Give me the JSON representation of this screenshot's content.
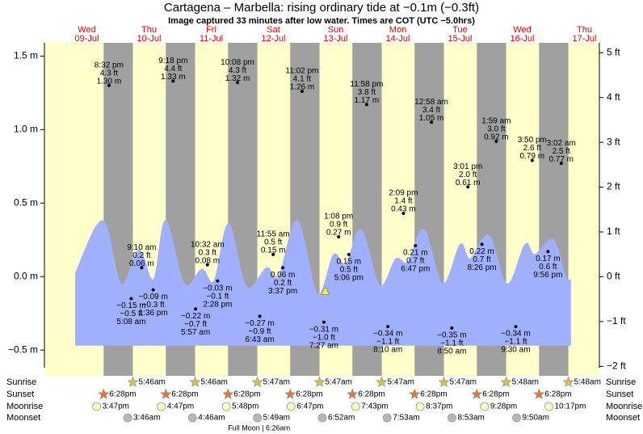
{
  "chart_data": {
    "type": "tide",
    "title": "Cartagena – Marbella: rising  ordinary tide at −0.1m (−0.3ft)",
    "subtitle": "Image captured 33 minutes after low water. Times are COT (UTC −5.0hrs)",
    "days": [
      {
        "weekday": "Wed",
        "date": "09-Jul"
      },
      {
        "weekday": "Thu",
        "date": "10-Jul"
      },
      {
        "weekday": "Fri",
        "date": "11-Jul"
      },
      {
        "weekday": "Sat",
        "date": "12-Jul"
      },
      {
        "weekday": "Sun",
        "date": "13-Jul"
      },
      {
        "weekday": "Mon",
        "date": "14-Jul"
      },
      {
        "weekday": "Tue",
        "date": "15-Jul"
      },
      {
        "weekday": "Wed",
        "date": "16-Jul"
      },
      {
        "weekday": "Thu",
        "date": "17-Jul"
      }
    ],
    "ylim": [
      -0.62,
      1.59
    ],
    "yticks": [
      {
        "value": 1.5,
        "label": "1.5 m"
      },
      {
        "value": 1.0,
        "label": "1.0 m"
      },
      {
        "value": 0.5,
        "label": "0.5 m"
      },
      {
        "value": 0.0,
        "label": "0.0 m"
      },
      {
        "value": -0.5,
        "label": "−0.5 m"
      }
    ],
    "y2lim": [
      -2.03,
      5.22
    ],
    "y2ticks": [
      {
        "value": 5,
        "label": "5 ft"
      },
      {
        "value": 4,
        "label": "4 ft"
      },
      {
        "value": 3,
        "label": "3 ft"
      },
      {
        "value": 2,
        "label": "2 ft"
      },
      {
        "value": 1,
        "label": "1 ft"
      },
      {
        "value": 0,
        "label": "0 ft"
      },
      {
        "value": -1,
        "label": "−1 ft"
      },
      {
        "value": -2,
        "label": "−2 ft"
      }
    ],
    "curve": {
      "color": "#a0b0ff",
      "hours": [
        7.5,
        18.1,
        25.2,
        32.1,
        37.7,
        42.4,
        49.6,
        56.4,
        61.1,
        66.7,
        73.6,
        81.4,
        86.0,
        93.2,
        101.0,
        107.2,
        111.9,
        117.8,
        125.0,
        131.2,
        135.9,
        142.1,
        149.3,
        156.1,
        159.9,
        167.1,
        174.2,
        181.1,
        184.8,
        192.0,
        196.7,
        198.8
      ],
      "values": [
        0.02,
        0.38,
        -0.05,
        0.18,
        -0.02,
        0.38,
        -0.05,
        0.05,
        -0.03,
        0.36,
        -0.07,
        0.06,
        0.0,
        0.38,
        -0.12,
        0.15,
        0.08,
        0.32,
        -0.06,
        0.12,
        0.1,
        0.32,
        -0.05,
        0.22,
        0.12,
        0.28,
        -0.05,
        0.22,
        0.15,
        0.25,
        0.0,
        -0.02
      ],
      "base": -0.47
    },
    "tides": [
      {
        "day": 0,
        "time": "8:32 pm",
        "ft": "4.3 ft",
        "m": "1.30 m",
        "value": 1.3
      },
      {
        "day": 1,
        "time": "5:08 am",
        "ft": "−0.5 ft",
        "m": "−0.15 m",
        "value": -0.15
      },
      {
        "day": 1,
        "time": "9:10 am",
        "ft": "0.2 ft",
        "m": "0.06 m",
        "value": 0.06
      },
      {
        "day": 1,
        "time": "1:36 pm",
        "ft": "−0.3 ft",
        "m": "−0.09 m",
        "value": -0.09
      },
      {
        "day": 1,
        "time": "9:18 pm",
        "ft": "4.4 ft",
        "m": "1.33 m",
        "value": 1.33
      },
      {
        "day": 2,
        "time": "5:57 am",
        "ft": "−0.7 ft",
        "m": "−0.22 m",
        "value": -0.22
      },
      {
        "day": 2,
        "time": "10:32 am",
        "ft": "0.3 ft",
        "m": "0.08 m",
        "value": 0.08
      },
      {
        "day": 2,
        "time": "2:28 pm",
        "ft": "−0.1 ft",
        "m": "−0.03 m",
        "value": -0.03
      },
      {
        "day": 2,
        "time": "10:08 pm",
        "ft": "4.3 ft",
        "m": "1.32 m",
        "value": 1.32
      },
      {
        "day": 3,
        "time": "6:43 am",
        "ft": "−0.9 ft",
        "m": "−0.27 m",
        "value": -0.27
      },
      {
        "day": 3,
        "time": "11:55 am",
        "ft": "0.5 ft",
        "m": "0.15 m",
        "value": 0.15
      },
      {
        "day": 3,
        "time": "3:37 pm",
        "ft": "0.2 ft",
        "m": "0.06 m",
        "value": 0.06
      },
      {
        "day": 3,
        "time": "11:02 pm",
        "ft": "4.1 ft",
        "m": "1.26 m",
        "value": 1.26
      },
      {
        "day": 4,
        "time": "7:27 am",
        "ft": "−1.0 ft",
        "m": "−0.31 m",
        "value": -0.31
      },
      {
        "day": 4,
        "time": "1:08 pm",
        "ft": "0.9 ft",
        "m": "0.27 m",
        "value": 0.27
      },
      {
        "day": 4,
        "time": "5:06 pm",
        "ft": "0.5 ft",
        "m": "0.15 m",
        "value": 0.15
      },
      {
        "day": 4,
        "time": "11:58 pm",
        "ft": "3.8 ft",
        "m": "1.17 m",
        "value": 1.17
      },
      {
        "day": 5,
        "time": "8:10 am",
        "ft": "−1.1 ft",
        "m": "−0.34 m",
        "value": -0.34
      },
      {
        "day": 5,
        "time": "2:09 pm",
        "ft": "1.4 ft",
        "m": "0.43 m",
        "value": 0.43
      },
      {
        "day": 5,
        "time": "6:47 pm",
        "ft": "0.7 ft",
        "m": "0.21 m",
        "value": 0.21
      },
      {
        "day": 6,
        "time": "12:58 am",
        "ft": "3.4 ft",
        "m": "1.05 m",
        "value": 1.05
      },
      {
        "day": 6,
        "time": "8:50 am",
        "ft": "−1.1 ft",
        "m": "−0.35 m",
        "value": -0.35
      },
      {
        "day": 6,
        "time": "3:01 pm",
        "ft": "2.0 ft",
        "m": "0.61 m",
        "value": 0.61
      },
      {
        "day": 6,
        "time": "8:26 pm",
        "ft": "0.7 ft",
        "m": "0.22 m",
        "value": 0.22
      },
      {
        "day": 7,
        "time": "1:59 am",
        "ft": "3.0 ft",
        "m": "0.92 m",
        "value": 0.92
      },
      {
        "day": 7,
        "time": "9:30 am",
        "ft": "−1.1 ft",
        "m": "−0.34 m",
        "value": -0.34
      },
      {
        "day": 7,
        "time": "3:50 pm",
        "ft": "2.6 ft",
        "m": "0.79 m",
        "value": 0.79
      },
      {
        "day": 7,
        "time": "9:56 pm",
        "ft": "0.6 ft",
        "m": "0.17 m",
        "value": 0.17
      },
      {
        "day": 8,
        "time": "3:02 am",
        "ft": "2.5 ft",
        "m": "0.77 m",
        "value": 0.77
      }
    ],
    "current": {
      "day": 4,
      "hours": 8.0,
      "value": -0.1
    },
    "row_labels": {
      "sunrise": "Sunrise",
      "sunset": "Sunset",
      "moonrise": "Moonrise",
      "moonset": "Moonset"
    },
    "sunrise": [
      {
        "day": 1,
        "time": "5:46am"
      },
      {
        "day": 2,
        "time": "5:46am"
      },
      {
        "day": 3,
        "time": "5:47am"
      },
      {
        "day": 4,
        "time": "5:47am"
      },
      {
        "day": 5,
        "time": "5:47am"
      },
      {
        "day": 6,
        "time": "5:47am"
      },
      {
        "day": 7,
        "time": "5:48am"
      },
      {
        "day": 8,
        "time": "5:48am"
      }
    ],
    "sunset": [
      {
        "day": 0,
        "time": "6:28pm"
      },
      {
        "day": 1,
        "time": "6:28pm"
      },
      {
        "day": 2,
        "time": "6:28pm"
      },
      {
        "day": 3,
        "time": "6:28pm"
      },
      {
        "day": 4,
        "time": "6:28pm"
      },
      {
        "day": 5,
        "time": "6:28pm"
      },
      {
        "day": 6,
        "time": "6:28pm"
      },
      {
        "day": 7,
        "time": "6:28pm"
      }
    ],
    "moonrise": [
      {
        "day": 0,
        "time": "3:47pm"
      },
      {
        "day": 1,
        "time": "4:47pm"
      },
      {
        "day": 2,
        "time": "5:48pm"
      },
      {
        "day": 3,
        "time": "6:47pm"
      },
      {
        "day": 4,
        "time": "7:43pm"
      },
      {
        "day": 5,
        "time": "8:37pm"
      },
      {
        "day": 6,
        "time": "9:28pm"
      },
      {
        "day": 7,
        "time": "10:17pm"
      }
    ],
    "moonset": [
      {
        "day": 1,
        "time": "3:46am"
      },
      {
        "day": 2,
        "time": "4:46am"
      },
      {
        "day": 3,
        "time": "5:49am"
      },
      {
        "day": 4,
        "time": "6:52am"
      },
      {
        "day": 5,
        "time": "7:53am"
      },
      {
        "day": 6,
        "time": "8:53am"
      },
      {
        "day": 7,
        "time": "9:50am"
      }
    ],
    "moon_phase": {
      "day": 3,
      "text": "Full Moon | 6:26am"
    }
  }
}
